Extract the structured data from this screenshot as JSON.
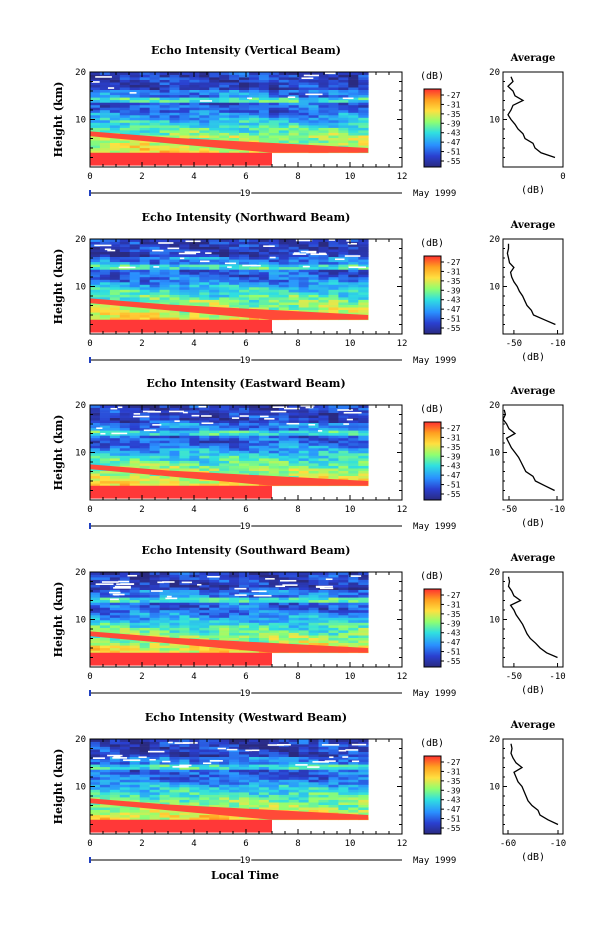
{
  "figure": {
    "xlabel": "Local Time",
    "ylabel": "Height (km)",
    "date_label": "May 1999",
    "day_label": "19",
    "avg_title": "Average",
    "avg_xlabel": "(dB)",
    "colorbar_unit": "(dB)"
  },
  "chart_data": [
    {
      "type": "heatmap",
      "title": "Echo Intensity (Vertical Beam)",
      "xlabel": "Local Time",
      "ylabel": "Height (km)",
      "xlim": [
        0,
        12
      ],
      "ylim": [
        0,
        20
      ],
      "xticks": [
        0,
        2,
        4,
        6,
        8,
        10,
        12
      ],
      "yticks": [
        10,
        20
      ],
      "data_end_time": 10.7,
      "lowlevel_end_time": 7.0,
      "colorbar": {
        "unit": "(dB)",
        "ticks": [
          -27,
          -31,
          -35,
          -39,
          -43,
          -47,
          -51,
          -55
        ]
      },
      "average_profile": {
        "title": "Average",
        "xlabel": "(dB)",
        "xlim": [
          -60,
          0
        ],
        "xticks": [
          0
        ],
        "heights": [
          2,
          3,
          4,
          5,
          6,
          7,
          8,
          9,
          10,
          11,
          12,
          13,
          14,
          15,
          16,
          17,
          18,
          19
        ],
        "values": [
          -8,
          -22,
          -28,
          -30,
          -38,
          -40,
          -45,
          -48,
          -52,
          -55,
          -52,
          -50,
          -40,
          -48,
          -50,
          -55,
          -50,
          -52
        ]
      }
    },
    {
      "type": "heatmap",
      "title": "Echo Intensity (Northward Beam)",
      "xlabel": "Local Time",
      "ylabel": "Height (km)",
      "xlim": [
        0,
        12
      ],
      "ylim": [
        0,
        20
      ],
      "xticks": [
        0,
        2,
        4,
        6,
        8,
        10,
        12
      ],
      "yticks": [
        10,
        20
      ],
      "data_end_time": 10.7,
      "lowlevel_end_time": 7.0,
      "colorbar": {
        "unit": "(dB)",
        "ticks": [
          -27,
          -31,
          -35,
          -39,
          -43,
          -47,
          -51,
          -55
        ]
      },
      "average_profile": {
        "title": "Average",
        "xlabel": "(dB)",
        "xlim": [
          -60,
          -5
        ],
        "xticks": [
          -50,
          -10
        ],
        "heights": [
          2,
          3,
          4,
          5,
          6,
          7,
          8,
          9,
          10,
          11,
          12,
          13,
          14,
          15,
          16,
          17,
          18,
          19
        ],
        "values": [
          -12,
          -22,
          -32,
          -34,
          -38,
          -40,
          -42,
          -45,
          -47,
          -50,
          -52,
          -53,
          -50,
          -54,
          -55,
          -56,
          -55,
          -55
        ]
      }
    },
    {
      "type": "heatmap",
      "title": "Echo Intensity (Eastward Beam)",
      "xlabel": "Local Time",
      "ylabel": "Height (km)",
      "xlim": [
        0,
        12
      ],
      "ylim": [
        0,
        20
      ],
      "xticks": [
        0,
        2,
        4,
        6,
        8,
        10,
        12
      ],
      "yticks": [
        10,
        20
      ],
      "data_end_time": 10.7,
      "lowlevel_end_time": 7.0,
      "colorbar": {
        "unit": "(dB)",
        "ticks": [
          -27,
          -31,
          -35,
          -39,
          -43,
          -47,
          -51,
          -55
        ]
      },
      "average_profile": {
        "title": "Average",
        "xlabel": "(dB)",
        "xlim": [
          -55,
          -5
        ],
        "xticks": [
          -50,
          -10
        ],
        "heights": [
          2,
          3,
          4,
          5,
          6,
          7,
          8,
          9,
          10,
          11,
          12,
          13,
          14,
          15,
          16,
          17,
          18,
          19
        ],
        "values": [
          -12,
          -20,
          -28,
          -30,
          -36,
          -38,
          -40,
          -42,
          -45,
          -48,
          -50,
          -52,
          -45,
          -50,
          -52,
          -55,
          -53,
          -54
        ]
      }
    },
    {
      "type": "heatmap",
      "title": "Echo Intensity (Southward Beam)",
      "xlabel": "Local Time",
      "ylabel": "Height (km)",
      "xlim": [
        0,
        12
      ],
      "ylim": [
        0,
        20
      ],
      "xticks": [
        0,
        2,
        4,
        6,
        8,
        10,
        12
      ],
      "yticks": [
        10,
        20
      ],
      "data_end_time": 10.7,
      "lowlevel_end_time": 7.0,
      "colorbar": {
        "unit": "(dB)",
        "ticks": [
          -27,
          -31,
          -35,
          -39,
          -43,
          -47,
          -51,
          -55
        ]
      },
      "average_profile": {
        "title": "Average",
        "xlabel": "(dB)",
        "xlim": [
          -60,
          -5
        ],
        "xticks": [
          -50,
          -10
        ],
        "heights": [
          2,
          3,
          4,
          5,
          6,
          7,
          8,
          9,
          10,
          11,
          12,
          13,
          14,
          15,
          16,
          17,
          18,
          19
        ],
        "values": [
          -10,
          -20,
          -26,
          -30,
          -35,
          -38,
          -40,
          -42,
          -45,
          -48,
          -50,
          -53,
          -44,
          -50,
          -52,
          -55,
          -54,
          -55
        ]
      }
    },
    {
      "type": "heatmap",
      "title": "Echo Intensity (Westward Beam)",
      "xlabel": "Local Time",
      "ylabel": "Height (km)",
      "xlim": [
        0,
        12
      ],
      "ylim": [
        0,
        20
      ],
      "xticks": [
        0,
        2,
        4,
        6,
        8,
        10,
        12
      ],
      "yticks": [
        10,
        20
      ],
      "data_end_time": 10.7,
      "lowlevel_end_time": 7.0,
      "colorbar": {
        "unit": "(dB)",
        "ticks": [
          -27,
          -31,
          -35,
          -39,
          -43,
          -47,
          -51,
          -55
        ]
      },
      "average_profile": {
        "title": "Average",
        "xlabel": "(dB)",
        "xlim": [
          -65,
          -5
        ],
        "xticks": [
          -60,
          -10
        ],
        "heights": [
          2,
          3,
          4,
          5,
          6,
          7,
          8,
          9,
          10,
          11,
          12,
          13,
          14,
          15,
          16,
          17,
          18,
          19
        ],
        "values": [
          -10,
          -20,
          -28,
          -30,
          -36,
          -40,
          -42,
          -44,
          -46,
          -50,
          -52,
          -54,
          -46,
          -52,
          -55,
          -57,
          -56,
          -57
        ]
      }
    }
  ]
}
